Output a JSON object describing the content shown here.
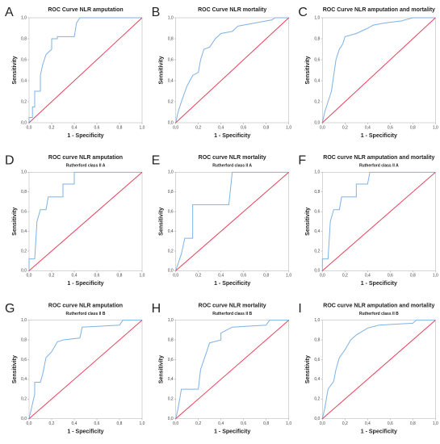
{
  "chart_data": [
    {
      "type": "line",
      "panel": "A",
      "title": "ROC Curve NLR amputation",
      "x_label": "1 - Specificity",
      "y_label": "Sensitivity",
      "xlim": [
        0,
        1
      ],
      "ylim": [
        0,
        1
      ],
      "xticks": [
        {
          "value": 0,
          "label": "0,0"
        },
        {
          "value": 0.2,
          "label": "0,2"
        },
        {
          "value": 0.4,
          "label": "0,4"
        },
        {
          "value": 0.6,
          "label": "0,6"
        },
        {
          "value": 0.8,
          "label": "0,8"
        },
        {
          "value": 1,
          "label": "1,0"
        }
      ],
      "yticks": [
        {
          "value": 0,
          "label": "0,0"
        },
        {
          "value": 0.2,
          "label": "0,2"
        },
        {
          "value": 0.4,
          "label": "0,4"
        },
        {
          "value": 0.6,
          "label": "0,6"
        },
        {
          "value": 0.8,
          "label": "0,8"
        },
        {
          "value": 1,
          "label": "1,0"
        }
      ],
      "series": [
        {
          "color": "#7fb2e5",
          "x": [
            0,
            0,
            0.03,
            0.03,
            0.05,
            0.05,
            0.1,
            0.1,
            0.12,
            0.15,
            0.2,
            0.2,
            0.25,
            0.25,
            0.4,
            0.42,
            0.45,
            1
          ],
          "values": [
            0,
            0.05,
            0.05,
            0.15,
            0.15,
            0.3,
            0.3,
            0.45,
            0.55,
            0.65,
            0.7,
            0.8,
            0.8,
            0.82,
            0.82,
            0.95,
            1,
            1
          ]
        },
        {
          "color": "#e8405a",
          "x": [
            0,
            1
          ],
          "values": [
            0,
            1
          ]
        }
      ]
    },
    {
      "type": "line",
      "panel": "B",
      "title": "ROC Curve NLR mortality",
      "x_label": "1 - Specificity",
      "y_label": "Sensitivity",
      "xlim": [
        0,
        1
      ],
      "ylim": [
        0,
        1
      ],
      "xticks": [
        {
          "value": 0,
          "label": "0,0"
        },
        {
          "value": 0.2,
          "label": "0,2"
        },
        {
          "value": 0.4,
          "label": "0,4"
        },
        {
          "value": 0.6,
          "label": "0,6"
        },
        {
          "value": 0.8,
          "label": "0,8"
        },
        {
          "value": 1,
          "label": "1,0"
        }
      ],
      "yticks": [
        {
          "value": 0,
          "label": "0,0"
        },
        {
          "value": 0.2,
          "label": "0,2"
        },
        {
          "value": 0.4,
          "label": "0,4"
        },
        {
          "value": 0.6,
          "label": "0,6"
        },
        {
          "value": 0.8,
          "label": "0,8"
        },
        {
          "value": 1,
          "label": "1,0"
        }
      ],
      "series": [
        {
          "color": "#7fb2e5",
          "x": [
            0,
            0.02,
            0.05,
            0.1,
            0.15,
            0.2,
            0.22,
            0.25,
            0.3,
            0.35,
            0.4,
            0.5,
            0.55,
            0.7,
            0.85,
            0.88,
            1
          ],
          "values": [
            0,
            0.1,
            0.2,
            0.35,
            0.45,
            0.48,
            0.6,
            0.7,
            0.72,
            0.8,
            0.85,
            0.87,
            0.92,
            0.95,
            0.98,
            1,
            1
          ]
        },
        {
          "color": "#e8405a",
          "x": [
            0,
            1
          ],
          "values": [
            0,
            1
          ]
        }
      ]
    },
    {
      "type": "line",
      "panel": "C",
      "title": "ROC Curve NLR amputation and mortality",
      "x_label": "1 - Specificity",
      "y_label": "Sensitivity",
      "xlim": [
        0,
        1
      ],
      "ylim": [
        0,
        1
      ],
      "xticks": [
        {
          "value": 0,
          "label": "0,0"
        },
        {
          "value": 0.2,
          "label": "0,2"
        },
        {
          "value": 0.4,
          "label": "0,4"
        },
        {
          "value": 0.6,
          "label": "0,6"
        },
        {
          "value": 0.8,
          "label": "0,8"
        },
        {
          "value": 1,
          "label": "1,0"
        }
      ],
      "yticks": [
        {
          "value": 0,
          "label": "0,0"
        },
        {
          "value": 0.2,
          "label": "0,2"
        },
        {
          "value": 0.4,
          "label": "0,4"
        },
        {
          "value": 0.6,
          "label": "0,6"
        },
        {
          "value": 0.8,
          "label": "0,8"
        },
        {
          "value": 1,
          "label": "1,0"
        }
      ],
      "series": [
        {
          "color": "#7fb2e5",
          "x": [
            0,
            0.02,
            0.05,
            0.08,
            0.1,
            0.12,
            0.15,
            0.18,
            0.2,
            0.3,
            0.4,
            0.45,
            0.55,
            0.7,
            0.8,
            1
          ],
          "values": [
            0,
            0.1,
            0.2,
            0.3,
            0.45,
            0.6,
            0.7,
            0.75,
            0.82,
            0.85,
            0.9,
            0.93,
            0.95,
            0.97,
            1,
            1
          ]
        },
        {
          "color": "#e8405a",
          "x": [
            0,
            1
          ],
          "values": [
            0,
            1
          ]
        }
      ]
    },
    {
      "type": "line",
      "panel": "D",
      "title": "ROC curve NLR amputation",
      "subtitle": "Rutherford class II A",
      "x_label": "1 - Specificity",
      "y_label": "Sensitivity",
      "xlim": [
        0,
        1
      ],
      "ylim": [
        0,
        1
      ],
      "xticks": [
        {
          "value": 0,
          "label": "0,0"
        },
        {
          "value": 0.2,
          "label": "0,2"
        },
        {
          "value": 0.4,
          "label": "0,4"
        },
        {
          "value": 0.6,
          "label": "0,6"
        },
        {
          "value": 0.8,
          "label": "0,8"
        },
        {
          "value": 1,
          "label": "1,0"
        }
      ],
      "yticks": [
        {
          "value": 0,
          "label": "0,0"
        },
        {
          "value": 0.2,
          "label": "0,2"
        },
        {
          "value": 0.4,
          "label": "0,4"
        },
        {
          "value": 0.6,
          "label": "0,6"
        },
        {
          "value": 0.8,
          "label": "0,8"
        },
        {
          "value": 1,
          "label": "1,0"
        }
      ],
      "series": [
        {
          "color": "#7fb2e5",
          "x": [
            0,
            0,
            0.05,
            0.07,
            0.1,
            0.15,
            0.17,
            0.3,
            0.3,
            0.4,
            0.4,
            1
          ],
          "values": [
            0,
            0.12,
            0.12,
            0.5,
            0.62,
            0.62,
            0.75,
            0.75,
            0.88,
            0.88,
            1,
            1
          ]
        },
        {
          "color": "#e8405a",
          "x": [
            0,
            1
          ],
          "values": [
            0,
            1
          ]
        }
      ]
    },
    {
      "type": "line",
      "panel": "E",
      "title": "ROC curve NLR mortality",
      "subtitle": "Rutherford class II A",
      "x_label": "1 - Specificity",
      "y_label": "Sensitivity",
      "xlim": [
        0,
        1
      ],
      "ylim": [
        0,
        1
      ],
      "xticks": [
        {
          "value": 0,
          "label": "0,0"
        },
        {
          "value": 0.2,
          "label": "0,2"
        },
        {
          "value": 0.4,
          "label": "0,4"
        },
        {
          "value": 0.6,
          "label": "0,6"
        },
        {
          "value": 0.8,
          "label": "0,8"
        },
        {
          "value": 1,
          "label": "1,0"
        }
      ],
      "yticks": [
        {
          "value": 0,
          "label": "0,0"
        },
        {
          "value": 0.2,
          "label": "0,2"
        },
        {
          "value": 0.4,
          "label": "0,4"
        },
        {
          "value": 0.6,
          "label": "0,6"
        },
        {
          "value": 0.8,
          "label": "0,8"
        },
        {
          "value": 1,
          "label": "1,0"
        }
      ],
      "series": [
        {
          "color": "#7fb2e5",
          "x": [
            0,
            0.05,
            0.08,
            0.15,
            0.15,
            0.47,
            0.5,
            1
          ],
          "values": [
            0,
            0.17,
            0.33,
            0.33,
            0.67,
            0.67,
            1,
            1
          ]
        },
        {
          "color": "#e8405a",
          "x": [
            0,
            1
          ],
          "values": [
            0,
            1
          ]
        }
      ]
    },
    {
      "type": "line",
      "panel": "F",
      "title": "ROC curve NLR amputation and mortality",
      "subtitle": "Rutherford class II A",
      "x_label": "1 - Specificity",
      "y_label": "Sensitivity",
      "xlim": [
        0,
        1
      ],
      "ylim": [
        0,
        1
      ],
      "xticks": [
        {
          "value": 0,
          "label": "0,0"
        },
        {
          "value": 0.2,
          "label": "0,2"
        },
        {
          "value": 0.4,
          "label": "0,4"
        },
        {
          "value": 0.6,
          "label": "0,6"
        },
        {
          "value": 0.8,
          "label": "0,8"
        },
        {
          "value": 1,
          "label": "1,0"
        }
      ],
      "yticks": [
        {
          "value": 0,
          "label": "0,0"
        },
        {
          "value": 0.2,
          "label": "0,2"
        },
        {
          "value": 0.4,
          "label": "0,4"
        },
        {
          "value": 0.6,
          "label": "0,6"
        },
        {
          "value": 0.8,
          "label": "0,8"
        },
        {
          "value": 1,
          "label": "1,0"
        }
      ],
      "series": [
        {
          "color": "#7fb2e5",
          "x": [
            0,
            0,
            0.05,
            0.07,
            0.1,
            0.15,
            0.17,
            0.3,
            0.3,
            0.4,
            0.42,
            1
          ],
          "values": [
            0,
            0.12,
            0.12,
            0.5,
            0.62,
            0.62,
            0.75,
            0.75,
            0.88,
            0.88,
            1,
            1
          ]
        },
        {
          "color": "#e8405a",
          "x": [
            0,
            1
          ],
          "values": [
            0,
            1
          ]
        }
      ]
    },
    {
      "type": "line",
      "panel": "G",
      "title": "ROC curve NLR amputation",
      "subtitle": "Rutherford class II B",
      "x_label": "1 - Specificity",
      "y_label": "Sensitivity",
      "xlim": [
        0,
        1
      ],
      "ylim": [
        0,
        1
      ],
      "xticks": [
        {
          "value": 0,
          "label": "0,0"
        },
        {
          "value": 0.2,
          "label": "0,2"
        },
        {
          "value": 0.4,
          "label": "0,4"
        },
        {
          "value": 0.6,
          "label": "0,6"
        },
        {
          "value": 0.8,
          "label": "0,8"
        },
        {
          "value": 1,
          "label": "1,0"
        }
      ],
      "yticks": [
        {
          "value": 0,
          "label": "0,0"
        },
        {
          "value": 0.2,
          "label": "0,2"
        },
        {
          "value": 0.4,
          "label": "0,4"
        },
        {
          "value": 0.6,
          "label": "0,6"
        },
        {
          "value": 0.8,
          "label": "0,8"
        },
        {
          "value": 1,
          "label": "1,0"
        }
      ],
      "series": [
        {
          "color": "#7fb2e5",
          "x": [
            0,
            0.02,
            0.05,
            0.05,
            0.1,
            0.12,
            0.15,
            0.2,
            0.25,
            0.3,
            0.45,
            0.47,
            0.8,
            0.83,
            1
          ],
          "values": [
            0,
            0.1,
            0.25,
            0.37,
            0.37,
            0.45,
            0.62,
            0.68,
            0.78,
            0.8,
            0.82,
            0.93,
            0.95,
            1,
            1
          ]
        },
        {
          "color": "#e8405a",
          "x": [
            0,
            1
          ],
          "values": [
            0,
            1
          ]
        }
      ]
    },
    {
      "type": "line",
      "panel": "H",
      "title": "ROC curve NLR mortality",
      "subtitle": "Rutherford class II B",
      "x_label": "1 - Specificity",
      "y_label": "Sensitivity",
      "xlim": [
        0,
        1
      ],
      "ylim": [
        0,
        1
      ],
      "xticks": [
        {
          "value": 0,
          "label": "0,0"
        },
        {
          "value": 0.2,
          "label": "0,2"
        },
        {
          "value": 0.4,
          "label": "0,4"
        },
        {
          "value": 0.6,
          "label": "0,6"
        },
        {
          "value": 0.8,
          "label": "0,8"
        },
        {
          "value": 1,
          "label": "1,0"
        }
      ],
      "yticks": [
        {
          "value": 0,
          "label": "0,0"
        },
        {
          "value": 0.2,
          "label": "0,2"
        },
        {
          "value": 0.4,
          "label": "0,4"
        },
        {
          "value": 0.6,
          "label": "0,6"
        },
        {
          "value": 0.8,
          "label": "0,8"
        },
        {
          "value": 1,
          "label": "1,0"
        }
      ],
      "series": [
        {
          "color": "#7fb2e5",
          "x": [
            0,
            0.02,
            0.05,
            0.2,
            0.22,
            0.25,
            0.3,
            0.4,
            0.4,
            0.5,
            0.8,
            0.83,
            1
          ],
          "values": [
            0,
            0.1,
            0.3,
            0.3,
            0.5,
            0.6,
            0.77,
            0.8,
            0.87,
            0.93,
            0.95,
            1,
            1
          ]
        },
        {
          "color": "#e8405a",
          "x": [
            0,
            1
          ],
          "values": [
            0,
            1
          ]
        }
      ]
    },
    {
      "type": "line",
      "panel": "I",
      "title": "ROC curve NLR amputation and mortality",
      "subtitle": "Rutherford class II B",
      "x_label": "1 - Specificity",
      "y_label": "Sensitivity",
      "xlim": [
        0,
        1
      ],
      "ylim": [
        0,
        1
      ],
      "xticks": [
        {
          "value": 0,
          "label": "0,0"
        },
        {
          "value": 0.2,
          "label": "0,2"
        },
        {
          "value": 0.4,
          "label": "0,4"
        },
        {
          "value": 0.6,
          "label": "0,6"
        },
        {
          "value": 0.8,
          "label": "0,8"
        },
        {
          "value": 1,
          "label": "1,0"
        }
      ],
      "yticks": [
        {
          "value": 0,
          "label": "0,0"
        },
        {
          "value": 0.2,
          "label": "0,2"
        },
        {
          "value": 0.4,
          "label": "0,4"
        },
        {
          "value": 0.6,
          "label": "0,6"
        },
        {
          "value": 0.8,
          "label": "0,8"
        },
        {
          "value": 1,
          "label": "1,0"
        }
      ],
      "series": [
        {
          "color": "#7fb2e5",
          "x": [
            0,
            0.02,
            0.05,
            0.1,
            0.12,
            0.15,
            0.2,
            0.25,
            0.3,
            0.4,
            0.5,
            0.8,
            0.83,
            1
          ],
          "values": [
            0,
            0.1,
            0.3,
            0.38,
            0.5,
            0.62,
            0.7,
            0.8,
            0.85,
            0.92,
            0.95,
            0.97,
            1,
            1
          ]
        },
        {
          "color": "#e8405a",
          "x": [
            0,
            1
          ],
          "values": [
            0,
            1
          ]
        }
      ]
    }
  ]
}
